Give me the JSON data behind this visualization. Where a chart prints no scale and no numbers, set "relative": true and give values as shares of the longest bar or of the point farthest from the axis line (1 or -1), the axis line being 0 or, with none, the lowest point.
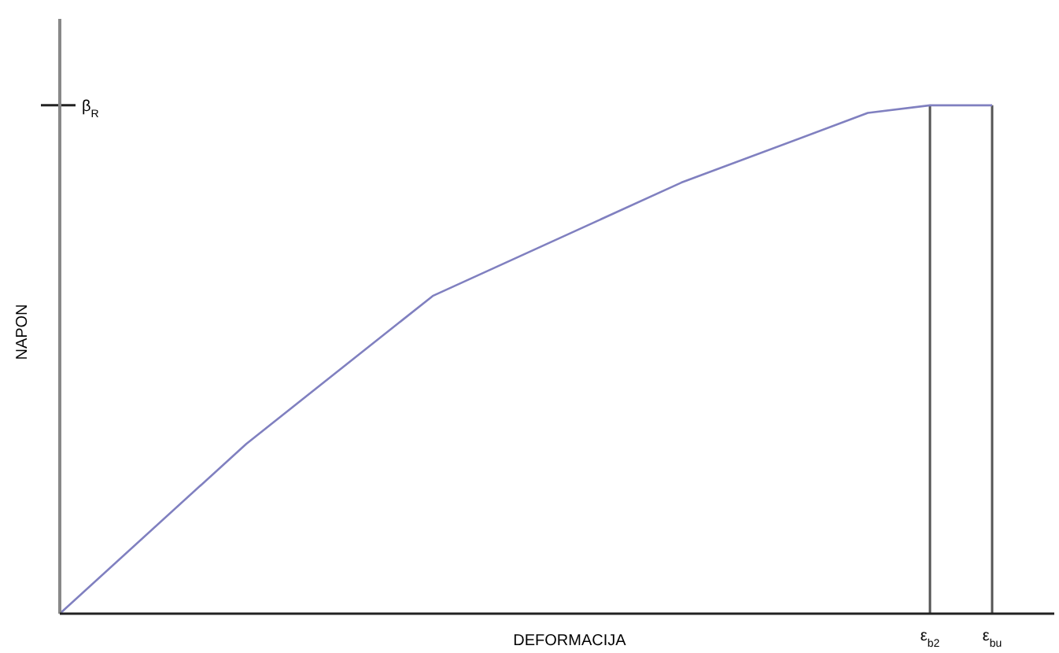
{
  "chart_data": {
    "type": "line",
    "relative": true,
    "xlabel": "DEFORMACIJA",
    "ylabel": "NAPON",
    "categories": [
      null,
      null,
      null,
      null,
      null,
      null,
      null,
      null,
      null,
      null,
      null,
      null,
      null,
      null,
      "ε$_{b2}$",
      "ε$_{bu}$"
    ],
    "series": [
      {
        "color": "#8080c0",
        "values": [
          0,
          null,
          null,
          0.334,
          null,
          null,
          0.625,
          null,
          null,
          null,
          0.848,
          null,
          null,
          0.985,
          1,
          1
        ]
      }
    ],
    "ref_lines": [
      {
        "axis": "y",
        "value": 1,
        "label": "β$_{R}$",
        "color": "#222222"
      },
      {
        "axis": "x",
        "value": "ε$_{b2}$",
        "color": "#555555"
      },
      {
        "axis": "x",
        "value": "ε$_{bu}$",
        "color": "#555555"
      }
    ],
    "grid": false,
    "marker": "none",
    "line_style": "solid"
  }
}
